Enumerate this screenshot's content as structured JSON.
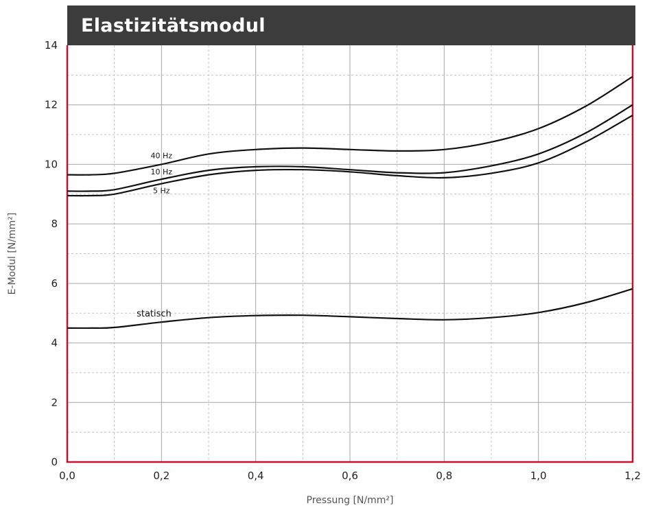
{
  "chart_data": {
    "type": "line",
    "title": "Elastizitätsmodul",
    "xlabel": "Pressung [N/mm²]",
    "ylabel": "E-Modul [N/mm²]",
    "xlim": [
      0,
      1.2
    ],
    "ylim": [
      0,
      14
    ],
    "x_ticks": [
      "0,0",
      "0,2",
      "0,4",
      "0,6",
      "0,8",
      "1,0",
      "1,2"
    ],
    "y_ticks": [
      "0",
      "2",
      "4",
      "6",
      "8",
      "10",
      "12",
      "14"
    ],
    "grid": true,
    "series": [
      {
        "name": "40 Hz",
        "x": [
          0.0,
          0.05,
          0.1,
          0.2,
          0.3,
          0.4,
          0.5,
          0.6,
          0.7,
          0.8,
          0.9,
          1.0,
          1.1,
          1.2
        ],
        "values": [
          9.65,
          9.65,
          9.7,
          10.0,
          10.35,
          10.5,
          10.55,
          10.5,
          10.45,
          10.5,
          10.75,
          11.2,
          11.95,
          12.95
        ]
      },
      {
        "name": "10 Hz",
        "x": [
          0.0,
          0.05,
          0.1,
          0.2,
          0.3,
          0.4,
          0.5,
          0.6,
          0.7,
          0.8,
          0.9,
          1.0,
          1.1,
          1.2
        ],
        "values": [
          9.1,
          9.1,
          9.15,
          9.5,
          9.8,
          9.92,
          9.92,
          9.82,
          9.72,
          9.72,
          9.95,
          10.35,
          11.05,
          12.0
        ]
      },
      {
        "name": "5 Hz",
        "x": [
          0.0,
          0.05,
          0.1,
          0.2,
          0.3,
          0.4,
          0.5,
          0.6,
          0.7,
          0.8,
          0.9,
          1.0,
          1.1,
          1.2
        ],
        "values": [
          8.95,
          8.95,
          9.0,
          9.35,
          9.65,
          9.8,
          9.82,
          9.75,
          9.62,
          9.55,
          9.7,
          10.05,
          10.75,
          11.65
        ]
      },
      {
        "name": "statisch",
        "x": [
          0.0,
          0.05,
          0.1,
          0.2,
          0.3,
          0.4,
          0.5,
          0.6,
          0.7,
          0.8,
          0.9,
          1.0,
          1.1,
          1.2
        ],
        "values": [
          4.5,
          4.5,
          4.52,
          4.7,
          4.85,
          4.92,
          4.93,
          4.88,
          4.82,
          4.78,
          4.85,
          5.02,
          5.35,
          5.82
        ]
      }
    ],
    "series_label_style": [
      "small",
      "small",
      "small",
      "big"
    ],
    "colors": {
      "series": "#111111",
      "frame": "#c8102e",
      "grid_major": "#a6a6a6",
      "grid_minor": "#c4c4c4",
      "title_bg": "#3c3c3c"
    }
  }
}
